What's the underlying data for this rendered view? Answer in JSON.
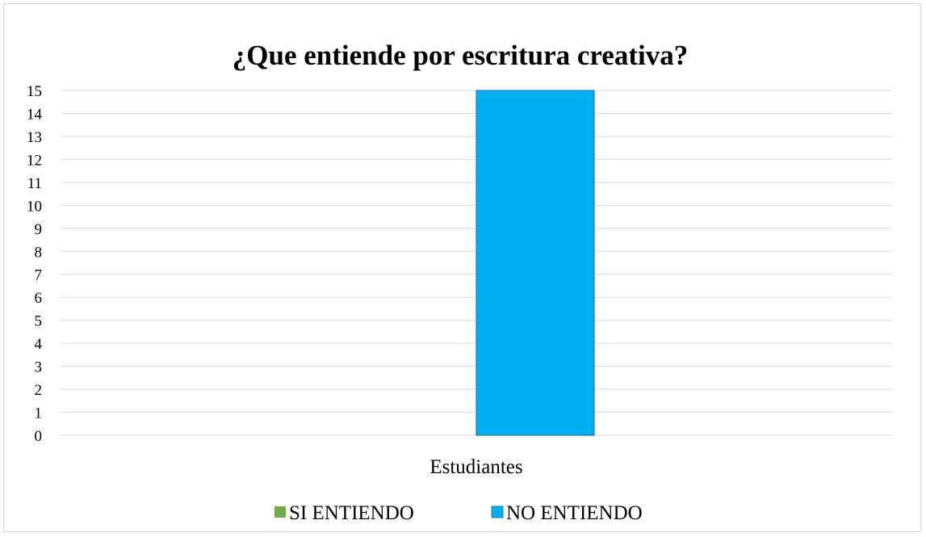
{
  "chart_data": {
    "type": "bar",
    "title": "¿Que entiende por escritura creativa?",
    "categories": [
      "Estudiantes"
    ],
    "series": [
      {
        "name": "SI ENTIENDO",
        "values": [
          0
        ],
        "color": "#70ad47"
      },
      {
        "name": "NO ENTIENDO",
        "values": [
          15
        ],
        "color": "#00b0f0"
      }
    ],
    "ylim": [
      0,
      15
    ],
    "yticks": [
      0,
      1,
      2,
      3,
      4,
      5,
      6,
      7,
      8,
      9,
      10,
      11,
      12,
      13,
      14,
      15
    ],
    "grid": true,
    "legend_position": "bottom"
  }
}
